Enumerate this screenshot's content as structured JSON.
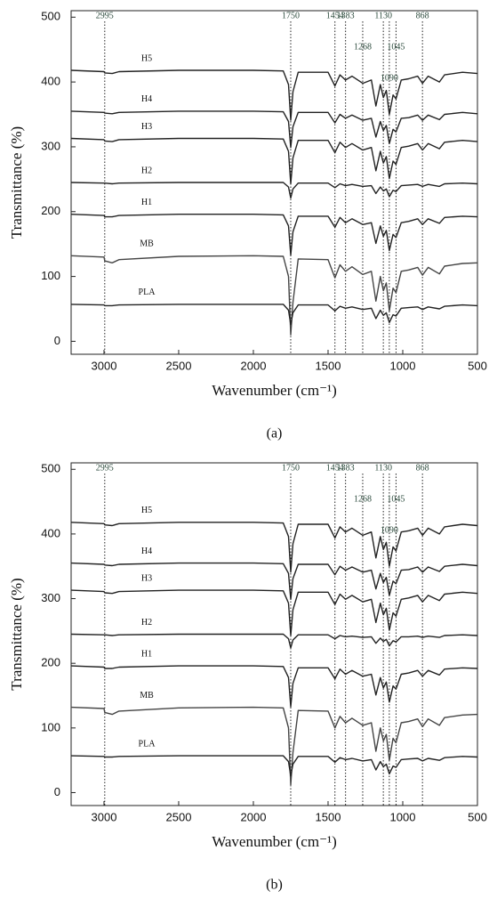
{
  "chart_data": [
    {
      "type": "line",
      "caption": "(a)",
      "xlabel": "Wavenumber (cm⁻¹)",
      "ylabel": "Transmittance (%)",
      "xlim": [
        3220,
        500
      ],
      "ylim": [
        -20,
        510
      ],
      "xticks": [
        3000,
        2500,
        2000,
        1500,
        1000,
        500
      ],
      "yticks": [
        0,
        100,
        200,
        300,
        400,
        500
      ],
      "vlines": [
        2995,
        1750,
        1454,
        1383,
        1268,
        1130,
        1090,
        1045,
        868
      ],
      "x": [
        3220,
        3000,
        2995,
        2945,
        2900,
        2500,
        2000,
        1800,
        1765,
        1750,
        1735,
        1700,
        1500,
        1454,
        1420,
        1383,
        1340,
        1268,
        1210,
        1180,
        1150,
        1130,
        1110,
        1090,
        1065,
        1045,
        1010,
        960,
        900,
        868,
        830,
        755,
        720,
        600,
        500
      ],
      "series": [
        {
          "name": "H5",
          "color": "#222222",
          "values": [
            418,
            416,
            414,
            413,
            416,
            418,
            418,
            417,
            396,
            341,
            385,
            415,
            415,
            394,
            411,
            403,
            409,
            398,
            403,
            363,
            396,
            376,
            387,
            350,
            380,
            374,
            403,
            405,
            409,
            398,
            409,
            400,
            411,
            415,
            413
          ]
        },
        {
          "name": "H4",
          "color": "#222222",
          "values": [
            355,
            353,
            352,
            351,
            353,
            355,
            355,
            354,
            339,
            299,
            331,
            353,
            353,
            337,
            350,
            344,
            349,
            341,
            344,
            315,
            339,
            325,
            333,
            305,
            327,
            323,
            344,
            345,
            349,
            341,
            349,
            342,
            350,
            353,
            351
          ]
        },
        {
          "name": "H3",
          "color": "#222222",
          "values": [
            313,
            311,
            309,
            308,
            311,
            313,
            313,
            312,
            293,
            243,
            283,
            310,
            310,
            291,
            307,
            299,
            305,
            295,
            299,
            263,
            293,
            275,
            285,
            251,
            278,
            273,
            299,
            301,
            305,
            295,
            305,
            297,
            307,
            310,
            308
          ]
        },
        {
          "name": "H2",
          "color": "#222222",
          "values": [
            245,
            244,
            244,
            243,
            244,
            245,
            245,
            245,
            238,
            221,
            235,
            244,
            244,
            237,
            243,
            240,
            242,
            239,
            240,
            228,
            238,
            232,
            235,
            223,
            233,
            231,
            240,
            241,
            242,
            239,
            242,
            239,
            243,
            244,
            243
          ]
        },
        {
          "name": "H1",
          "color": "#222222",
          "values": [
            196,
            194,
            192,
            192,
            194,
            196,
            196,
            195,
            178,
            133,
            169,
            193,
            193,
            176,
            191,
            183,
            189,
            180,
            183,
            151,
            178,
            162,
            171,
            140,
            165,
            160,
            183,
            185,
            189,
            180,
            189,
            182,
            191,
            193,
            192
          ]
        },
        {
          "name": "MB",
          "color": "#444444",
          "values": [
            132,
            130,
            124,
            121,
            126,
            131,
            132,
            131,
            100,
            10,
            60,
            127,
            126,
            98,
            118,
            108,
            115,
            103,
            108,
            62,
            100,
            78,
            90,
            47,
            82,
            75,
            108,
            110,
            114,
            102,
            114,
            104,
            116,
            120,
            121
          ]
        },
        {
          "name": "PLA",
          "color": "#222222",
          "values": [
            57,
            56,
            55,
            55,
            56,
            57,
            57,
            57,
            48,
            26,
            44,
            56,
            56,
            47,
            54,
            51,
            53,
            49,
            51,
            35,
            48,
            40,
            44,
            29,
            41,
            39,
            51,
            52,
            53,
            49,
            53,
            50,
            54,
            56,
            55
          ]
        }
      ]
    },
    {
      "type": "line",
      "caption": "(b)",
      "xlabel": "Wavenumber (cm⁻¹)",
      "ylabel": "Transmittance (%)",
      "xlim": [
        3220,
        500
      ],
      "ylim": [
        -20,
        510
      ],
      "xticks": [
        3000,
        2500,
        2000,
        1500,
        1000,
        500
      ],
      "yticks": [
        0,
        100,
        200,
        300,
        400,
        500
      ],
      "vlines": [
        2995,
        1750,
        1454,
        1383,
        1268,
        1130,
        1090,
        1045,
        868
      ],
      "x": [
        3220,
        3000,
        2995,
        2945,
        2900,
        2500,
        2000,
        1800,
        1765,
        1750,
        1735,
        1700,
        1500,
        1454,
        1420,
        1383,
        1340,
        1268,
        1210,
        1180,
        1150,
        1130,
        1110,
        1090,
        1065,
        1045,
        1010,
        960,
        900,
        868,
        830,
        755,
        720,
        600,
        500
      ],
      "series": [
        {
          "name": "H5",
          "color": "#222222",
          "values": [
            418,
            416,
            414,
            413,
            416,
            418,
            418,
            417,
            396,
            341,
            385,
            415,
            415,
            394,
            411,
            403,
            409,
            398,
            403,
            363,
            396,
            376,
            387,
            350,
            380,
            374,
            403,
            405,
            409,
            398,
            409,
            400,
            411,
            415,
            413
          ]
        },
        {
          "name": "H4",
          "color": "#222222",
          "values": [
            355,
            353,
            352,
            351,
            353,
            355,
            355,
            354,
            339,
            299,
            331,
            353,
            353,
            337,
            350,
            344,
            349,
            341,
            344,
            315,
            339,
            325,
            333,
            305,
            327,
            323,
            344,
            345,
            349,
            341,
            349,
            342,
            350,
            353,
            351
          ]
        },
        {
          "name": "H3",
          "color": "#222222",
          "values": [
            313,
            311,
            309,
            308,
            311,
            313,
            313,
            312,
            293,
            243,
            283,
            310,
            310,
            291,
            307,
            299,
            305,
            295,
            299,
            263,
            293,
            275,
            285,
            251,
            278,
            273,
            299,
            301,
            305,
            295,
            305,
            297,
            307,
            310,
            308
          ]
        },
        {
          "name": "H2",
          "color": "#222222",
          "values": [
            245,
            244,
            244,
            243,
            244,
            245,
            245,
            245,
            238,
            224,
            236,
            244,
            244,
            238,
            243,
            241,
            242,
            240,
            241,
            231,
            239,
            234,
            237,
            227,
            235,
            233,
            241,
            241,
            242,
            240,
            242,
            240,
            243,
            244,
            243
          ]
        },
        {
          "name": "H1",
          "color": "#222222",
          "values": [
            196,
            194,
            192,
            192,
            194,
            196,
            196,
            195,
            178,
            133,
            169,
            193,
            193,
            176,
            191,
            183,
            189,
            180,
            183,
            151,
            178,
            162,
            171,
            140,
            165,
            160,
            183,
            185,
            189,
            180,
            189,
            182,
            191,
            193,
            192
          ]
        },
        {
          "name": "MB",
          "color": "#444444",
          "values": [
            132,
            130,
            124,
            121,
            126,
            131,
            132,
            131,
            100,
            12,
            62,
            127,
            126,
            100,
            118,
            108,
            115,
            104,
            108,
            64,
            100,
            80,
            90,
            50,
            84,
            77,
            108,
            110,
            114,
            102,
            114,
            104,
            116,
            120,
            121
          ]
        },
        {
          "name": "PLA",
          "color": "#222222",
          "values": [
            57,
            56,
            55,
            55,
            56,
            57,
            57,
            57,
            48,
            26,
            44,
            56,
            56,
            47,
            54,
            51,
            53,
            49,
            51,
            35,
            48,
            40,
            44,
            29,
            41,
            39,
            51,
            52,
            53,
            49,
            53,
            50,
            54,
            56,
            55
          ]
        }
      ]
    }
  ]
}
